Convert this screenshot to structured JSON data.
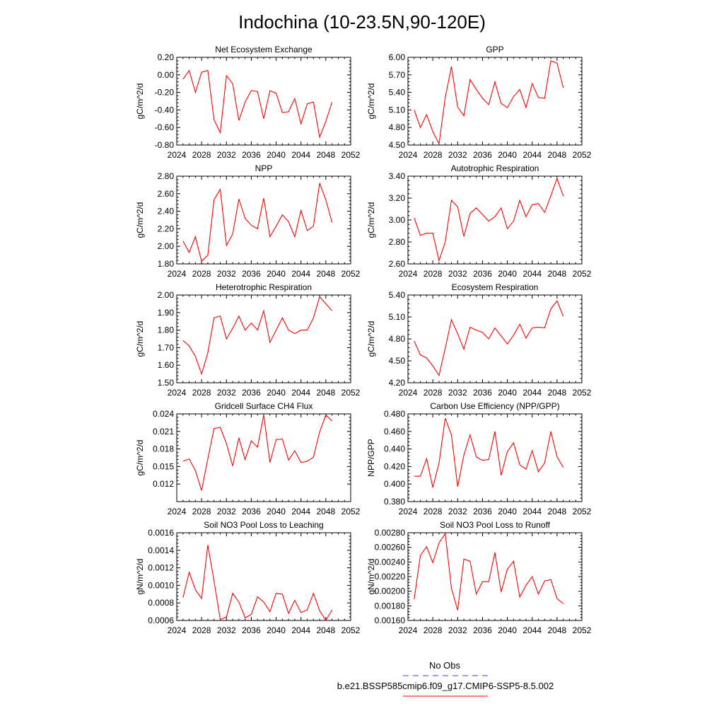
{
  "figure": {
    "title": "Indochina (10-23.5N,90-120E)",
    "legend": {
      "obs_label": "No Obs",
      "obs_color": "#3b3bff",
      "model_label": "b.e21.BSSP585cmip6.f09_g17.CMIP6-SSP5-8.5.002",
      "model_color": "#ff0000"
    }
  },
  "chart_data": [
    {
      "type": "line",
      "title": "Net Ecosystem Exchange",
      "ylabel": "gC/m^2/d",
      "xlim": [
        2024,
        2052
      ],
      "xticks": [
        "2024",
        "2028",
        "2032",
        "2036",
        "2040",
        "2044",
        "2048",
        "2052"
      ],
      "ylim": [
        -0.8,
        0.2
      ],
      "yticks": [
        "0.20",
        "0.00",
        "-0.20",
        "-0.40",
        "-0.60",
        "-0.80"
      ],
      "series": [
        {
          "color": "#ff0000",
          "x": [
            2025,
            2026,
            2027,
            2028,
            2029,
            2030,
            2031,
            2032,
            2033,
            2034,
            2035,
            2036,
            2037,
            2038,
            2039,
            2040,
            2041,
            2042,
            2043,
            2044,
            2045,
            2046,
            2047,
            2048,
            2049
          ],
          "values": [
            -0.05,
            0.05,
            -0.2,
            0.03,
            0.05,
            -0.51,
            -0.66,
            -0.01,
            -0.1,
            -0.52,
            -0.31,
            -0.18,
            -0.19,
            -0.5,
            -0.18,
            -0.21,
            -0.43,
            -0.42,
            -0.27,
            -0.56,
            -0.33,
            -0.31,
            -0.71,
            -0.53,
            -0.31
          ]
        }
      ]
    },
    {
      "type": "line",
      "title": "GPP",
      "ylabel": "gC/m^2/d",
      "xlim": [
        2024,
        2052
      ],
      "xticks": [
        "2024",
        "2028",
        "2032",
        "2036",
        "2040",
        "2044",
        "2048",
        "2052"
      ],
      "ylim": [
        4.5,
        6.0
      ],
      "yticks": [
        "6.00",
        "5.70",
        "5.40",
        "5.10",
        "4.80",
        "4.50"
      ],
      "series": [
        {
          "color": "#ff0000",
          "x": [
            2025,
            2026,
            2027,
            2028,
            2029,
            2030,
            2031,
            2032,
            2033,
            2034,
            2035,
            2036,
            2037,
            2038,
            2039,
            2040,
            2041,
            2042,
            2043,
            2044,
            2045,
            2046,
            2047,
            2048,
            2049
          ],
          "values": [
            5.1,
            4.8,
            5.02,
            4.73,
            4.52,
            5.31,
            5.84,
            5.15,
            5.0,
            5.62,
            5.45,
            5.3,
            5.19,
            5.58,
            5.21,
            5.14,
            5.33,
            5.45,
            5.14,
            5.55,
            5.31,
            5.3,
            5.94,
            5.9,
            5.48
          ]
        }
      ]
    },
    {
      "type": "line",
      "title": "NPP",
      "ylabel": "gC/m^2/d",
      "xlim": [
        2024,
        2052
      ],
      "xticks": [
        "2024",
        "2028",
        "2032",
        "2036",
        "2040",
        "2044",
        "2048",
        "2052"
      ],
      "ylim": [
        1.8,
        2.8
      ],
      "yticks": [
        "2.80",
        "2.60",
        "2.40",
        "2.20",
        "2.00",
        "1.80"
      ],
      "series": [
        {
          "color": "#ff0000",
          "x": [
            2025,
            2026,
            2027,
            2028,
            2029,
            2030,
            2031,
            2032,
            2033,
            2034,
            2035,
            2036,
            2037,
            2038,
            2039,
            2040,
            2041,
            2042,
            2043,
            2044,
            2045,
            2046,
            2047,
            2048,
            2049
          ],
          "values": [
            2.06,
            1.93,
            2.11,
            1.83,
            1.9,
            2.53,
            2.65,
            2.01,
            2.14,
            2.54,
            2.32,
            2.24,
            2.2,
            2.55,
            2.11,
            2.23,
            2.36,
            2.28,
            2.11,
            2.41,
            2.18,
            2.23,
            2.72,
            2.53,
            2.27
          ]
        }
      ]
    },
    {
      "type": "line",
      "title": "Autotrophic Respiration",
      "ylabel": "gC/m^2/d",
      "xlim": [
        2024,
        2052
      ],
      "xticks": [
        "2024",
        "2028",
        "2032",
        "2036",
        "2040",
        "2044",
        "2048",
        "2052"
      ],
      "ylim": [
        2.6,
        3.4
      ],
      "yticks": [
        "3.40",
        "3.20",
        "3.00",
        "2.80",
        "2.60"
      ],
      "series": [
        {
          "color": "#ff0000",
          "x": [
            2025,
            2026,
            2027,
            2028,
            2029,
            2030,
            2031,
            2032,
            2033,
            2034,
            2035,
            2036,
            2037,
            2038,
            2039,
            2040,
            2041,
            2042,
            2043,
            2044,
            2045,
            2046,
            2047,
            2048,
            2049
          ],
          "values": [
            3.02,
            2.86,
            2.88,
            2.88,
            2.63,
            2.8,
            3.18,
            3.12,
            2.85,
            3.06,
            3.11,
            3.05,
            2.99,
            3.03,
            3.11,
            2.92,
            2.99,
            3.18,
            3.03,
            3.14,
            3.15,
            3.07,
            3.22,
            3.38,
            3.22
          ]
        }
      ]
    },
    {
      "type": "line",
      "title": "Heterotrophic Respiration",
      "ylabel": "gC/m^2/d",
      "xlim": [
        2024,
        2052
      ],
      "xticks": [
        "2024",
        "2028",
        "2032",
        "2036",
        "2040",
        "2044",
        "2048",
        "2052"
      ],
      "ylim": [
        1.5,
        2.0
      ],
      "yticks": [
        "2.00",
        "1.90",
        "1.80",
        "1.70",
        "1.60",
        "1.50"
      ],
      "series": [
        {
          "color": "#ff0000",
          "x": [
            2025,
            2026,
            2027,
            2028,
            2029,
            2030,
            2031,
            2032,
            2033,
            2034,
            2035,
            2036,
            2037,
            2038,
            2039,
            2040,
            2041,
            2042,
            2043,
            2044,
            2045,
            2046,
            2047,
            2048,
            2049
          ],
          "values": [
            1.74,
            1.71,
            1.65,
            1.55,
            1.67,
            1.87,
            1.88,
            1.75,
            1.81,
            1.88,
            1.8,
            1.84,
            1.8,
            1.91,
            1.73,
            1.8,
            1.87,
            1.8,
            1.78,
            1.8,
            1.8,
            1.87,
            1.99,
            1.95,
            1.91
          ]
        }
      ]
    },
    {
      "type": "line",
      "title": "Ecosystem Respiration",
      "ylabel": "gC/m^2/d",
      "xlim": [
        2024,
        2052
      ],
      "xticks": [
        "2024",
        "2028",
        "2032",
        "2036",
        "2040",
        "2044",
        "2048",
        "2052"
      ],
      "ylim": [
        4.2,
        5.4
      ],
      "yticks": [
        "5.40",
        "5.10",
        "4.80",
        "4.50",
        "4.20"
      ],
      "series": [
        {
          "color": "#ff0000",
          "x": [
            2025,
            2026,
            2027,
            2028,
            2029,
            2030,
            2031,
            2032,
            2033,
            2034,
            2035,
            2036,
            2037,
            2038,
            2039,
            2040,
            2041,
            2042,
            2043,
            2044,
            2045,
            2046,
            2047,
            2048,
            2049
          ],
          "values": [
            4.77,
            4.58,
            4.54,
            4.43,
            4.3,
            4.67,
            5.06,
            4.87,
            4.66,
            4.96,
            4.92,
            4.89,
            4.8,
            4.95,
            4.84,
            4.73,
            4.85,
            5.0,
            4.81,
            4.95,
            4.96,
            4.95,
            5.21,
            5.32,
            5.11
          ]
        }
      ]
    },
    {
      "type": "line",
      "title": "Gridcell Surface CH4 Flux",
      "ylabel": "gC/m^2/d",
      "xlim": [
        2024,
        2052
      ],
      "xticks": [
        "2024",
        "2028",
        "2032",
        "2036",
        "2040",
        "2044",
        "2048",
        "2052"
      ],
      "ylim": [
        0.009,
        0.024
      ],
      "yticks": [
        "0.024",
        "0.021",
        "0.018",
        "0.015",
        "0.012"
      ],
      "series": [
        {
          "color": "#ff0000",
          "x": [
            2025,
            2026,
            2027,
            2028,
            2029,
            2030,
            2031,
            2032,
            2033,
            2034,
            2035,
            2036,
            2037,
            2038,
            2039,
            2040,
            2041,
            2042,
            2043,
            2044,
            2045,
            2046,
            2047,
            2048,
            2049
          ],
          "values": [
            0.0159,
            0.0163,
            0.0143,
            0.0109,
            0.0163,
            0.0215,
            0.0217,
            0.0189,
            0.0151,
            0.0199,
            0.0162,
            0.0194,
            0.0183,
            0.0238,
            0.0157,
            0.0196,
            0.0197,
            0.0161,
            0.0177,
            0.0157,
            0.0159,
            0.0166,
            0.0209,
            0.0238,
            0.0228
          ]
        }
      ]
    },
    {
      "type": "line",
      "title": "Carbon Use Efficiency (NPP/GPP)",
      "ylabel": "NPP/GPP",
      "xlim": [
        2024,
        2052
      ],
      "xticks": [
        "2024",
        "2028",
        "2032",
        "2036",
        "2040",
        "2044",
        "2048",
        "2052"
      ],
      "ylim": [
        0.38,
        0.48
      ],
      "yticks": [
        "0.480",
        "0.460",
        "0.440",
        "0.420",
        "0.400",
        "0.380"
      ],
      "series": [
        {
          "color": "#ff0000",
          "x": [
            2025,
            2026,
            2027,
            2028,
            2029,
            2030,
            2031,
            2032,
            2033,
            2034,
            2035,
            2036,
            2037,
            2038,
            2039,
            2040,
            2041,
            2042,
            2043,
            2044,
            2045,
            2046,
            2047,
            2048,
            2049
          ],
          "values": [
            0.409,
            0.409,
            0.429,
            0.396,
            0.424,
            0.475,
            0.456,
            0.397,
            0.433,
            0.456,
            0.431,
            0.427,
            0.428,
            0.46,
            0.41,
            0.437,
            0.447,
            0.422,
            0.417,
            0.438,
            0.414,
            0.424,
            0.46,
            0.431,
            0.419
          ]
        }
      ]
    },
    {
      "type": "line",
      "title": "Soil NO3 Pool Loss to Leaching",
      "ylabel": "gN/m^2/d",
      "xlim": [
        2024,
        2052
      ],
      "xticks": [
        "2024",
        "2028",
        "2032",
        "2036",
        "2040",
        "2044",
        "2048",
        "2052"
      ],
      "ylim": [
        0.0006,
        0.0016
      ],
      "yticks": [
        "0.0016",
        "0.0014",
        "0.0012",
        "0.0010",
        "0.0008",
        "0.0006"
      ],
      "series": [
        {
          "color": "#ff0000",
          "x": [
            2025,
            2026,
            2027,
            2028,
            2029,
            2030,
            2031,
            2032,
            2033,
            2034,
            2035,
            2036,
            2037,
            2038,
            2039,
            2040,
            2041,
            2042,
            2043,
            2044,
            2045,
            2046,
            2047,
            2048,
            2049
          ],
          "values": [
            0.00086,
            0.00115,
            0.00095,
            0.00085,
            0.00146,
            0.00105,
            0.00061,
            0.00064,
            0.00091,
            0.00081,
            0.00063,
            0.00067,
            0.00087,
            0.00081,
            0.0007,
            0.00091,
            0.0009,
            0.00068,
            0.00083,
            0.00069,
            0.00072,
            0.00091,
            0.00071,
            0.0006,
            0.00072
          ]
        }
      ]
    },
    {
      "type": "line",
      "title": "Soil NO3 Pool Loss to Runoff",
      "ylabel": "gN/m^2/d",
      "xlim": [
        2024,
        2052
      ],
      "xticks": [
        "2024",
        "2028",
        "2032",
        "2036",
        "2040",
        "2044",
        "2048",
        "2052"
      ],
      "ylim": [
        0.0016,
        0.0028
      ],
      "yticks": [
        "0.00280",
        "0.00260",
        "0.00240",
        "0.00220",
        "0.00200",
        "0.00180",
        "0.00160"
      ],
      "series": [
        {
          "color": "#ff0000",
          "x": [
            2025,
            2026,
            2027,
            2028,
            2029,
            2030,
            2031,
            2032,
            2033,
            2034,
            2035,
            2036,
            2037,
            2038,
            2039,
            2040,
            2041,
            2042,
            2043,
            2044,
            2045,
            2046,
            2047,
            2048,
            2049
          ],
          "values": [
            0.00189,
            0.00249,
            0.00261,
            0.00239,
            0.00266,
            0.00279,
            0.00204,
            0.00174,
            0.00244,
            0.00241,
            0.00196,
            0.00213,
            0.00213,
            0.00253,
            0.00199,
            0.0023,
            0.00241,
            0.00192,
            0.00208,
            0.0022,
            0.00196,
            0.00214,
            0.00216,
            0.0019,
            0.00183
          ]
        }
      ]
    }
  ]
}
